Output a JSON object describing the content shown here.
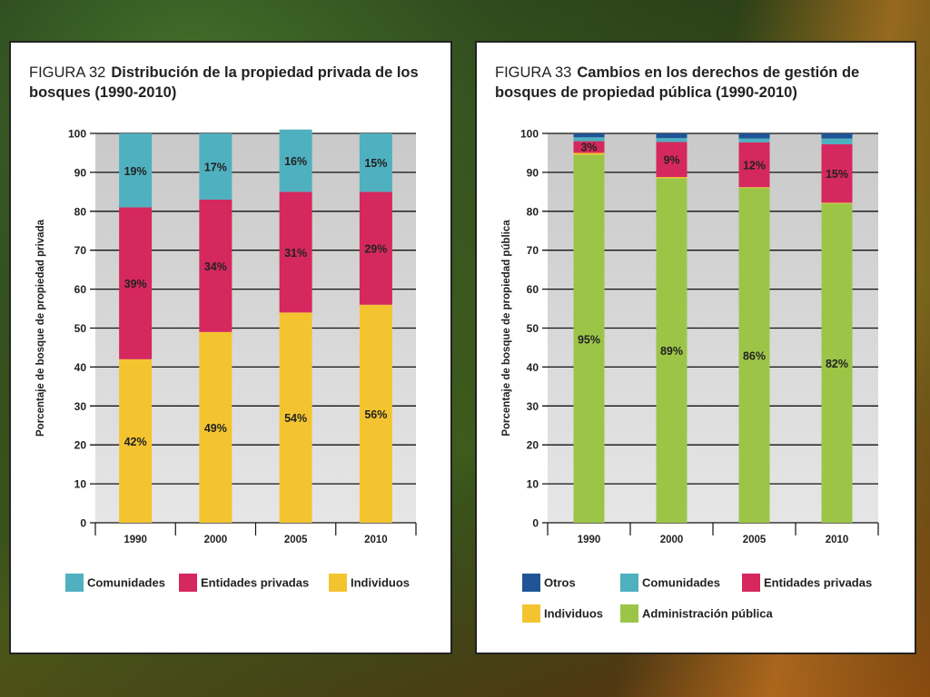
{
  "colors": {
    "comunidades": "#4fb0bf",
    "entidades": "#d5285f",
    "individuos": "#f4c430",
    "otros": "#1f5596",
    "administracion": "#9cc548",
    "plot_bg": "#c9c9c9",
    "plot_bg_light": "#e6e6e6"
  },
  "chart_data": [
    {
      "type": "bar",
      "stacked": true,
      "title": "Distribución de la propiedad privada de los bosques (1990–2010)",
      "figure_label": "FIGURA 32",
      "title_bold": "Distribución de la propiedad privada de los bosques (1990-2010)",
      "ylabel": "Porcentaje de bosque de propiedad privada",
      "xlabel": "",
      "ylim": [
        0,
        100
      ],
      "yticks": [
        "0",
        "10",
        "20",
        "30",
        "40",
        "50",
        "60",
        "70",
        "80",
        "90",
        "100"
      ],
      "categories": [
        "1990",
        "2000",
        "2005",
        "2010"
      ],
      "series": [
        {
          "name": "Individuos",
          "color_key": "individuos",
          "values": [
            42,
            49,
            54,
            56
          ],
          "labels": [
            "42%",
            "49%",
            "54%",
            "56%"
          ]
        },
        {
          "name": "Entidades privadas",
          "color_key": "entidades",
          "values": [
            39,
            34,
            31,
            29
          ],
          "labels": [
            "39%",
            "34%",
            "31%",
            "29%"
          ]
        },
        {
          "name": "Comunidades",
          "color_key": "comunidades",
          "values": [
            19,
            17,
            16,
            15
          ],
          "labels": [
            "19%",
            "17%",
            "16%",
            "15%"
          ]
        }
      ],
      "legend": [
        {
          "name": "Comunidades",
          "color_key": "comunidades"
        },
        {
          "name": "Entidades privadas",
          "color_key": "entidades"
        },
        {
          "name": "Individuos",
          "color_key": "individuos"
        }
      ],
      "legend_position": "bottom",
      "grid": true
    },
    {
      "type": "bar",
      "stacked": true,
      "title": "Cambios en los derechos de gestión de bosques de propiedad pública (1990–2010)",
      "figure_label": "FIGURA 33",
      "title_bold": "Cambios en los derechos de gestión de bosques de propiedad pública (1990-2010)",
      "ylabel": "Porcentaje de bosque de propiedad pública",
      "xlabel": "",
      "ylim": [
        0,
        100
      ],
      "yticks": [
        "0",
        "10",
        "20",
        "30",
        "40",
        "50",
        "60",
        "70",
        "80",
        "90",
        "100"
      ],
      "categories": [
        "1990",
        "2000",
        "2005",
        "2010"
      ],
      "series": [
        {
          "name": "Administración pública",
          "color_key": "administracion",
          "values": [
            94.5,
            88.5,
            86,
            82
          ],
          "labels": [
            "95%",
            "89%",
            "86%",
            "82%"
          ]
        },
        {
          "name": "Individuos",
          "color_key": "individuos",
          "values": [
            0.5,
            0.3,
            0.2,
            0.2
          ],
          "labels": [
            "",
            "",
            "",
            ""
          ]
        },
        {
          "name": "Entidades privadas",
          "color_key": "entidades",
          "values": [
            3,
            9,
            11.5,
            15
          ],
          "labels": [
            "3%",
            "9%",
            "12%",
            "15%"
          ]
        },
        {
          "name": "Comunidades",
          "color_key": "comunidades",
          "values": [
            1,
            1,
            1,
            1.5
          ],
          "labels": [
            "",
            "",
            "",
            ""
          ]
        },
        {
          "name": "Otros",
          "color_key": "otros",
          "values": [
            1,
            1.2,
            1.3,
            1.3
          ],
          "labels": [
            "",
            "",
            "",
            ""
          ]
        }
      ],
      "legend": [
        {
          "name": "Otros",
          "color_key": "otros"
        },
        {
          "name": "Comunidades",
          "color_key": "comunidades"
        },
        {
          "name": "Entidades privadas",
          "color_key": "entidades"
        },
        {
          "name": "Individuos",
          "color_key": "individuos"
        },
        {
          "name": "Administración pública",
          "color_key": "administracion"
        }
      ],
      "legend_position": "bottom",
      "grid": true
    }
  ]
}
